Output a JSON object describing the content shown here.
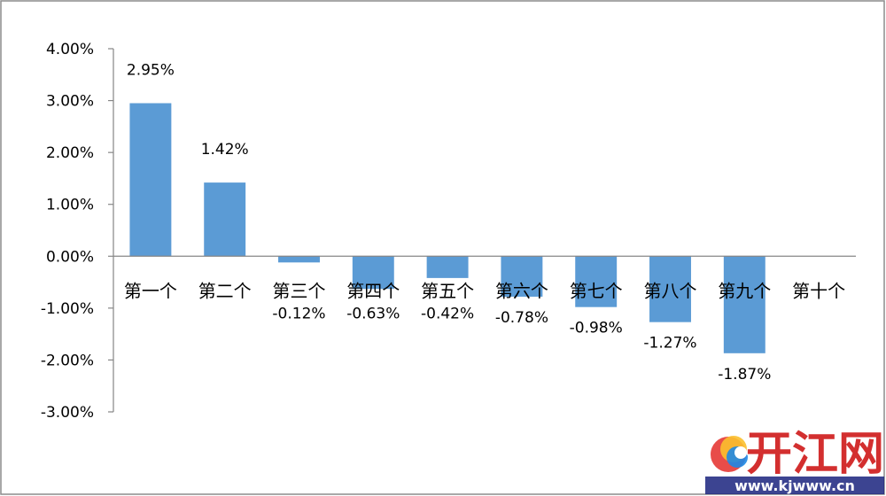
{
  "chart_data": {
    "type": "bar",
    "categories": [
      "第一个",
      "第二个",
      "第三个",
      "第四个",
      "第五个",
      "第六个",
      "第七个",
      "第八个",
      "第九个",
      "第十个"
    ],
    "values": [
      2.95,
      1.42,
      -0.12,
      -0.63,
      -0.42,
      -0.78,
      -0.98,
      -1.27,
      -1.87,
      null
    ],
    "data_labels": [
      "2.95%",
      "1.42%",
      "-0.12%",
      "-0.63%",
      "-0.42%",
      "-0.78%",
      "-0.98%",
      "-1.27%",
      "-1.87%",
      ""
    ],
    "y_ticks": [
      4,
      3,
      2,
      1,
      0,
      -1,
      -2,
      -3
    ],
    "y_tick_labels": [
      "4.00%",
      "3.00%",
      "2.00%",
      "1.00%",
      "0.00%",
      "-1.00%",
      "-2.00%",
      "-3.00%"
    ],
    "ylim": [
      -3,
      4
    ],
    "title": "",
    "xlabel": "",
    "ylabel": "",
    "grid": false,
    "bar_color": "#5b9bd5"
  },
  "watermark": {
    "logo_text": "开江网",
    "url_text": "www.kjwww.cn"
  }
}
